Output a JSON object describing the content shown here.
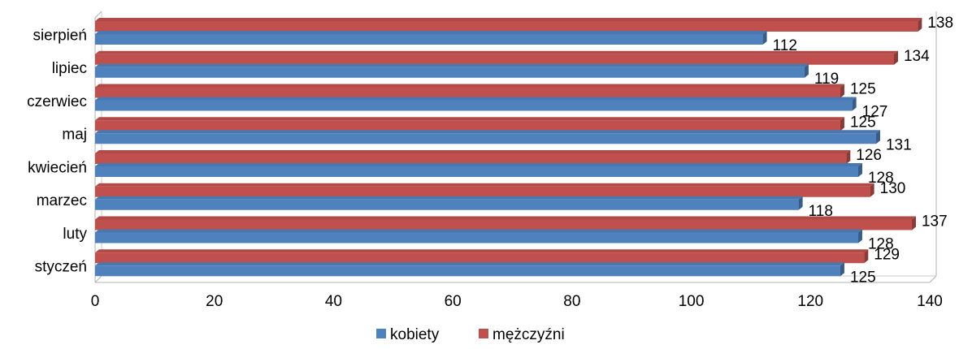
{
  "chart_data": {
    "type": "bar",
    "orientation": "horizontal",
    "categories": [
      "styczeń",
      "luty",
      "marzec",
      "kwiecień",
      "maj",
      "czerwiec",
      "lipiec",
      "sierpień"
    ],
    "series": [
      {
        "name": "kobiety",
        "color": "#4F81BD",
        "values": [
          125,
          128,
          118,
          128,
          131,
          127,
          119,
          112
        ]
      },
      {
        "name": "mężczyźni",
        "color": "#C0504D",
        "values": [
          129,
          137,
          130,
          126,
          125,
          125,
          134,
          138
        ]
      }
    ],
    "xlim": [
      0,
      140
    ],
    "xticks": [
      0,
      20,
      40,
      60,
      80,
      100,
      120,
      140
    ],
    "legend_position": "bottom",
    "grid": false,
    "style": "3d-bar"
  }
}
